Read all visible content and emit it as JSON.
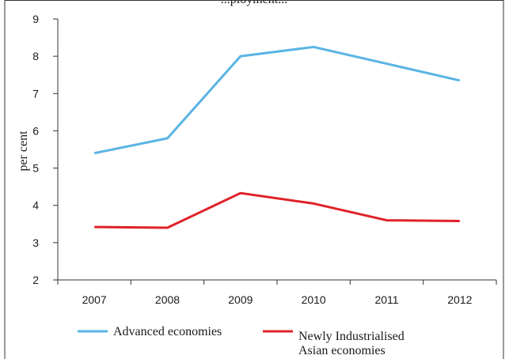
{
  "chart_data": {
    "type": "line",
    "title": "...ployment...",
    "ylabel": "per cent",
    "xlabel": "",
    "categories": [
      "2007",
      "2008",
      "2009",
      "2010",
      "2011",
      "2012"
    ],
    "ylim": [
      2,
      9
    ],
    "yticks": [
      "2",
      "3",
      "4",
      "5",
      "6",
      "7",
      "8",
      "9"
    ],
    "grid": false,
    "legend": "bottom",
    "series": [
      {
        "name": "Advanced economies",
        "color": "#5ab4e4",
        "values": [
          5.4,
          5.8,
          8.0,
          8.25,
          7.8,
          7.35
        ]
      },
      {
        "name": "Newly Industrialised Asian economies",
        "legend_lines": [
          "Newly Industrialised",
          "Asian economies"
        ],
        "color": "#e02229",
        "values": [
          3.42,
          3.4,
          4.33,
          4.05,
          3.6,
          3.58
        ]
      }
    ]
  }
}
